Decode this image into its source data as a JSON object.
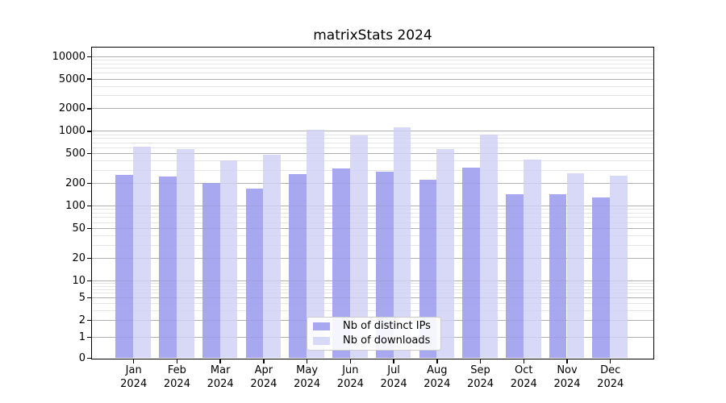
{
  "chart_data": {
    "type": "bar",
    "title": "matrixStats 2024",
    "categories": [
      "Jan 2024",
      "Feb 2024",
      "Mar 2024",
      "Apr 2024",
      "May 2024",
      "Jun 2024",
      "Jul 2024",
      "Aug 2024",
      "Sep 2024",
      "Oct 2024",
      "Nov 2024",
      "Dec 2024"
    ],
    "series": [
      {
        "name": "Nb of distinct IPs",
        "color": "#a8a8f0",
        "values": [
          258,
          246,
          200,
          170,
          263,
          314,
          286,
          223,
          325,
          142,
          143,
          130
        ]
      },
      {
        "name": "Nb of downloads",
        "color": "#d8d8f7",
        "values": [
          608,
          565,
          406,
          482,
          1048,
          872,
          1121,
          577,
          886,
          413,
          268,
          253
        ]
      }
    ],
    "yscale": "log-with-zero",
    "yticks": [
      0,
      1,
      2,
      5,
      10,
      20,
      50,
      100,
      200,
      500,
      1000,
      2000,
      5000,
      10000
    ],
    "ylim": [
      0,
      13000
    ],
    "xlabel": "",
    "ylabel": "",
    "grid": "major+minor horizontal",
    "legend_position": "lower center"
  }
}
